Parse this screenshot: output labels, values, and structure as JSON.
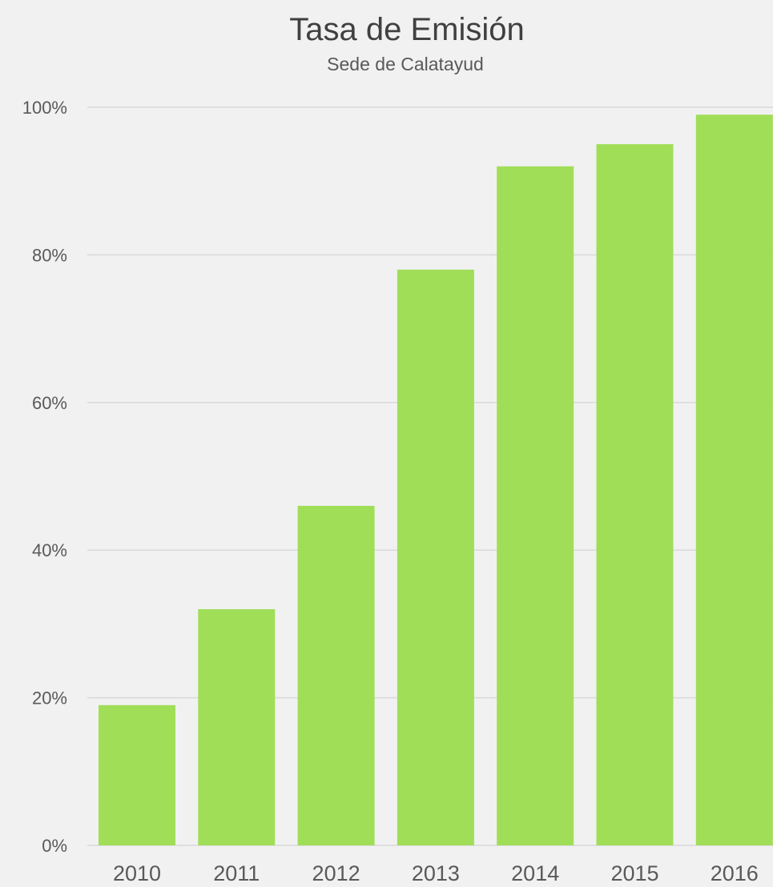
{
  "chart_data": {
    "type": "bar",
    "title": "Tasa de Emisión",
    "subtitle": "Sede de Calatayud",
    "categories": [
      "2010",
      "2011",
      "2012",
      "2013",
      "2014",
      "2015",
      "2016"
    ],
    "values": [
      19,
      32,
      46,
      78,
      92,
      95,
      99
    ],
    "ylim": [
      0,
      100
    ],
    "yticks": [
      0,
      20,
      40,
      60,
      80,
      100
    ],
    "ytick_labels": [
      "0%",
      "20%",
      "40%",
      "60%",
      "80%",
      "100%"
    ],
    "grid": true,
    "legend": "none",
    "colors": {
      "bar": "#a0de58",
      "grid": "#d9d9d9",
      "text": "#595959",
      "title": "#404040",
      "background": "#f1f1f1"
    }
  }
}
